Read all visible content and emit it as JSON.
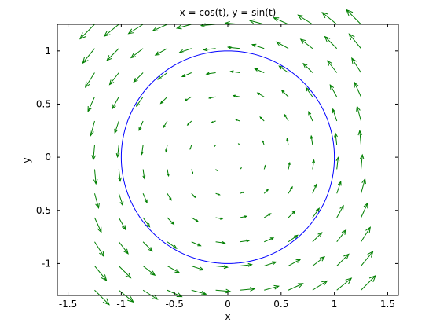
{
  "chart_data": {
    "type": "vector-field-with-curve",
    "title": "x = cos(t), y = sin(t)",
    "xlabel": "x",
    "ylabel": "y",
    "xlim": [
      -1.6,
      1.6
    ],
    "ylim": [
      -1.3,
      1.25
    ],
    "xticks": [
      -1.5,
      -1,
      -0.5,
      0,
      0.5,
      1,
      1.5
    ],
    "xtick_labels": [
      "-1.5",
      "-1",
      "-0.5",
      "0",
      "0.5",
      "1",
      "1.5"
    ],
    "yticks": [
      -1,
      -0.5,
      0,
      0.5,
      1
    ],
    "ytick_labels": [
      "-1",
      "-0.5",
      "0",
      "0.5",
      "1"
    ],
    "grid": false,
    "curve": {
      "parametric_x": "cos(t)",
      "parametric_y": "sin(t)",
      "t_range": [
        0,
        6.2832
      ],
      "color": "#0000ff"
    },
    "vector_field": {
      "u": "-y",
      "v": "x",
      "grid_x_range": [
        -1.25,
        1.25
      ],
      "grid_y_range": [
        -1.25,
        1.25
      ],
      "grid_count": 12,
      "scale": 0.85,
      "color": "#007f00"
    }
  }
}
